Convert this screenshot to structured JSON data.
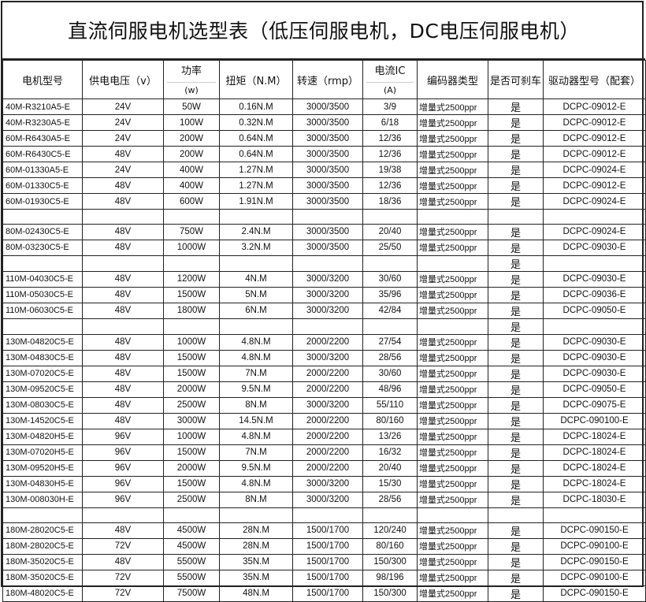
{
  "title": "直流伺服电机选型表（低压伺服电机，DC电压伺服电机）",
  "headers": {
    "model": "电机型号",
    "voltage": "供电电压（v）",
    "power_top": "功率",
    "power_bot": "(w)",
    "torque": "扭矩（N.M）",
    "speed": "转速（rmp）",
    "current_top": "电流IC",
    "current_bot": "(A)",
    "encoder": "编码器类型",
    "brake": "是否可刹车",
    "driver": "驱动器型号（配套）"
  },
  "rows": [
    [
      "40M-R3210A5-E",
      "24V",
      "50W",
      "0.16N.M",
      "3000/3500",
      "3/9",
      "增量式2500ppr",
      "是",
      "DCPC-09012-E"
    ],
    [
      "40M-R3230A5-E",
      "24V",
      "100W",
      "0.32N.M",
      "3000/3500",
      "6/18",
      "增量式2500ppr",
      "是",
      "DCPC-09012-E"
    ],
    [
      "60M-R6430A5-E",
      "24V",
      "200W",
      "0.64N.M",
      "3000/3500",
      "12/36",
      "增量式2500ppr",
      "是",
      "DCPC-09012-E"
    ],
    [
      "60M-R6430C5-E",
      "48V",
      "200W",
      "0.64N.M",
      "3000/3500",
      "12/36",
      "增量式2500ppr",
      "是",
      "DCPC-09012-E"
    ],
    [
      "60M-01330A5-E",
      "24V",
      "400W",
      "1.27N.M",
      "3000/3500",
      "19/38",
      "增量式2500ppr",
      "是",
      "DCPC-09024-E"
    ],
    [
      "60M-01330C5-E",
      "48V",
      "400W",
      "1.27N.M",
      "3000/3500",
      "12/36",
      "增量式2500ppr",
      "是",
      "DCPC-09012-E"
    ],
    [
      "60M-01930C5-E",
      "48V",
      "600W",
      "1.91N.M",
      "3000/3500",
      "18/36",
      "增量式2500ppr",
      "是",
      "DCPC-09024-E"
    ],
    [
      "",
      "",
      "",
      "",
      "",
      "",
      "",
      "",
      ""
    ],
    [
      "80M-02430C5-E",
      "48V",
      "750W",
      "2.4N.M",
      "3000/3500",
      "20/40",
      "增量式2500ppr",
      "是",
      "DCPC-09024-E"
    ],
    [
      "80M-03230C5-E",
      "48V",
      "1000W",
      "3.2N.M",
      "3000/3500",
      "25/50",
      "增量式2500ppr",
      "是",
      "DCPC-09030-E"
    ],
    [
      "",
      "",
      "",
      "",
      "",
      "",
      "",
      "是",
      ""
    ],
    [
      "110M-04030C5-E",
      "48V",
      "1200W",
      "4N.M",
      "3000/3200",
      "30/60",
      "增量式2500ppr",
      "是",
      "DCPC-09030-E"
    ],
    [
      "110M-05030C5-E",
      "48V",
      "1500W",
      "5N.M",
      "3000/3200",
      "35/96",
      "增量式2500ppr",
      "是",
      "DCPC-09036-E"
    ],
    [
      "110M-06030C5-E",
      "48V",
      "1800W",
      "6N.M",
      "3000/3200",
      "42/84",
      "增量式2500ppr",
      "是",
      "DCPC-09050-E"
    ],
    [
      "",
      "",
      "",
      "",
      "",
      "",
      "",
      "是",
      ""
    ],
    [
      "130M-04820C5-E",
      "48V",
      "1000W",
      "4.8N.M",
      "2000/2200",
      "27/54",
      "增量式2500ppr",
      "是",
      "DCPC-09030-E"
    ],
    [
      "130M-04830C5-E",
      "48V",
      "1500W",
      "4.8N.M",
      "3000/3200",
      "28/56",
      "增量式2500ppr",
      "是",
      "DCPC-09030-E"
    ],
    [
      "130M-07020C5-E",
      "48V",
      "1500W",
      "7N.M",
      "2000/2200",
      "30/60",
      "增量式2500ppr",
      "是",
      "DCPC-09030-E"
    ],
    [
      "130M-09520C5-E",
      "48V",
      "2000W",
      "9.5N.M",
      "2000/2200",
      "48/96",
      "增量式2500ppr",
      "是",
      "DCPC-09050-E"
    ],
    [
      "130M-08030C5-E",
      "48V",
      "2500W",
      "8N.M",
      "3000/3200",
      "55/110",
      "增量式2500ppr",
      "是",
      "DCPC-09075-E"
    ],
    [
      "130M-14520C5-E",
      "48V",
      "3000W",
      "14.5N.M",
      "2000/2200",
      "80/160",
      "增量式2500ppr",
      "是",
      "DCPC-090100-E"
    ],
    [
      "130M-04820H5-E",
      "96V",
      "1000W",
      "4.8N.M",
      "2000/2200",
      "13/26",
      "增量式2500ppr",
      "是",
      "DCPC-18024-E"
    ],
    [
      "130M-07020H5-E",
      "96V",
      "1500W",
      "7N.M",
      "2000/2200",
      "16/32",
      "增量式2500ppr",
      "是",
      "DCPC-18024-E"
    ],
    [
      "130M-09520H5-E",
      "96V",
      "2000W",
      "9.5N.M",
      "2000/2200",
      "20/40",
      "增量式2500ppr",
      "是",
      "DCPC-18024-E"
    ],
    [
      "130M-04830H5-E",
      "96V",
      "1500W",
      "4.8N.M",
      "3000/3200",
      "15/30",
      "增量式2500ppr",
      "是",
      "DCPC-18024-E"
    ],
    [
      "130M-008030H-E",
      "96V",
      "2500W",
      "8N.M",
      "3000/3200",
      "28/56",
      "增量式2500ppr",
      "是",
      "DCPC-18030-E"
    ],
    [
      "",
      "",
      "",
      "",
      "",
      "",
      "",
      "",
      ""
    ],
    [
      "180M-28020C5-E",
      "48V",
      "4500W",
      "28N.M",
      "1500/1700",
      "120/240",
      "增量式2500ppr",
      "是",
      "DCPC-090150-E"
    ],
    [
      "180M-28020C5-E",
      "72V",
      "4500W",
      "28N.M",
      "1500/1700",
      "80/160",
      "增量式2500ppr",
      "是",
      "DCPC-090100-E"
    ],
    [
      "180M-35020C5-E",
      "48V",
      "5500W",
      "35N.M",
      "1500/1700",
      "150/300",
      "增量式2500ppr",
      "是",
      "DCPC-090150-E"
    ],
    [
      "180M-35020C5-E",
      "72V",
      "5500W",
      "35N.M",
      "1500/1700",
      "98/196",
      "增量式2500ppr",
      "是",
      "DCPC-090100-E"
    ],
    [
      "180M-48020C5-E",
      "72V",
      "7500W",
      "48N.M",
      "1500/1700",
      "150/300",
      "增量式2500ppr",
      "是",
      "DCPC-090150-E"
    ]
  ]
}
